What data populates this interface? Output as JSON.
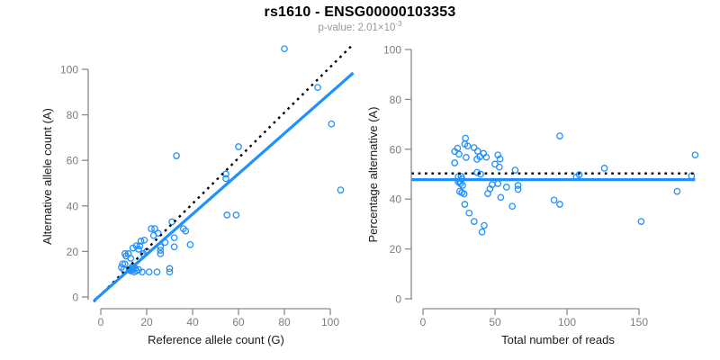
{
  "header": {
    "title": "rs1610 - ENSG00000103353",
    "subtitle_prefix": "p-value: ",
    "subtitle_mantissa": "2.01",
    "subtitle_base": "×10",
    "subtitle_exponent": "-3"
  },
  "colors": {
    "point_blue": "#1E90FF",
    "fit_blue": "#1E90FF",
    "dotted_black": "#000000",
    "axis_gray": "#8a8a8a",
    "tick_label_gray": "#7d7d7d",
    "label_dark": "#1a1a1a",
    "subtitle_gray": "#979797"
  },
  "chart_data": [
    {
      "type": "scatter",
      "panel": "left",
      "xlabel": "Reference allele count (G)",
      "ylabel": "Alternative allele count (A)",
      "xtick_labels": [
        "0",
        "20",
        "40",
        "60",
        "80",
        "100"
      ],
      "xtick_values": [
        0,
        20,
        40,
        60,
        80,
        100
      ],
      "ytick_labels": [
        "0",
        "20",
        "40",
        "60",
        "80",
        "100"
      ],
      "ytick_values": [
        0,
        20,
        40,
        60,
        80,
        100
      ],
      "xlim": [
        -4,
        112
      ],
      "ylim": [
        -4,
        112
      ],
      "grid": false,
      "legend": "none",
      "points": [
        [
          22,
          30
        ],
        [
          23.5,
          30
        ],
        [
          36,
          30
        ],
        [
          37,
          29
        ],
        [
          32,
          26
        ],
        [
          32,
          22
        ],
        [
          39,
          23
        ],
        [
          17.5,
          24.5
        ],
        [
          15.5,
          22.5
        ],
        [
          17,
          22.5
        ],
        [
          16.5,
          21
        ],
        [
          14,
          21.5
        ],
        [
          10.5,
          19
        ],
        [
          12,
          19
        ],
        [
          11,
          18
        ],
        [
          26,
          22
        ],
        [
          26,
          20.5
        ],
        [
          26,
          19
        ],
        [
          9.5,
          14.5
        ],
        [
          10.5,
          14.5
        ],
        [
          9,
          13
        ],
        [
          10,
          12
        ],
        [
          14,
          13
        ],
        [
          15,
          12.5
        ],
        [
          15.5,
          11.5
        ],
        [
          14.5,
          11
        ],
        [
          13.5,
          12
        ],
        [
          16.5,
          12
        ],
        [
          18,
          11
        ],
        [
          21,
          11
        ],
        [
          24.5,
          11
        ],
        [
          30,
          12.5
        ],
        [
          30,
          11
        ],
        [
          33,
          62
        ],
        [
          60,
          66
        ],
        [
          54.5,
          54
        ],
        [
          54.5,
          52
        ],
        [
          55,
          36
        ],
        [
          59,
          36
        ],
        [
          80,
          109
        ],
        [
          94.5,
          92
        ],
        [
          100.5,
          76
        ],
        [
          104.5,
          47
        ],
        [
          13,
          17
        ],
        [
          19,
          25
        ],
        [
          28,
          24
        ],
        [
          31,
          33
        ],
        [
          13.5,
          13
        ],
        [
          12.5,
          12
        ],
        [
          13,
          11.5
        ],
        [
          14,
          12
        ],
        [
          23,
          27
        ],
        [
          25,
          28
        ],
        [
          18.5,
          19
        ],
        [
          20,
          20
        ]
      ],
      "lines": [
        {
          "name": "identity-line",
          "desc": "dotted identity y=x",
          "style": "dotted",
          "color": "#000000",
          "from": [
            -3,
            -2
          ],
          "to": [
            109.5,
            110.5
          ]
        },
        {
          "name": "fit-line",
          "desc": "solid fit y≈0.89x",
          "style": "solid",
          "color": "#1E90FF",
          "from": [
            -3,
            -1.7
          ],
          "to": [
            110,
            98.4
          ]
        }
      ]
    },
    {
      "type": "scatter",
      "panel": "right",
      "xlabel": "Total number of reads",
      "ylabel": "Percentage alternative (A)",
      "xtick_labels": [
        "0",
        "50",
        "100",
        "150"
      ],
      "xtick_values": [
        0,
        50,
        100,
        150
      ],
      "ytick_labels": [
        "0",
        "20",
        "40",
        "60",
        "80",
        "100"
      ],
      "ytick_values": [
        0,
        20,
        40,
        60,
        80,
        100
      ],
      "xlim": [
        -8,
        200
      ],
      "ylim": [
        -4,
        112
      ],
      "grid": false,
      "legend": "none",
      "points": [
        [
          52,
          57.7
        ],
        [
          53.5,
          56.1
        ],
        [
          66,
          45.5
        ],
        [
          66,
          43.9
        ],
        [
          58,
          44.8
        ],
        [
          54,
          40.7
        ],
        [
          62,
          37.1
        ],
        [
          42,
          58.3
        ],
        [
          38,
          59.2
        ],
        [
          39.5,
          57
        ],
        [
          37.5,
          56
        ],
        [
          35.5,
          60.6
        ],
        [
          29.5,
          64.4
        ],
        [
          31,
          61.3
        ],
        [
          29,
          62.1
        ],
        [
          48,
          45.8
        ],
        [
          46.5,
          44.1
        ],
        [
          45,
          42.2
        ],
        [
          24,
          60.4
        ],
        [
          25,
          58
        ],
        [
          22,
          59.1
        ],
        [
          22,
          54.5
        ],
        [
          27,
          48.1
        ],
        [
          27.5,
          45.5
        ],
        [
          27,
          42.6
        ],
        [
          25.5,
          43.1
        ],
        [
          25.5,
          47.1
        ],
        [
          28.5,
          42.1
        ],
        [
          29,
          37.9
        ],
        [
          32,
          34.4
        ],
        [
          35.5,
          31
        ],
        [
          42.5,
          29.4
        ],
        [
          41,
          26.8
        ],
        [
          95,
          65.3
        ],
        [
          126,
          52.4
        ],
        [
          108.5,
          49.8
        ],
        [
          106.5,
          48.8
        ],
        [
          91,
          39.6
        ],
        [
          95,
          37.9
        ],
        [
          189,
          57.7
        ],
        [
          186.5,
          49.3
        ],
        [
          176.5,
          43.1
        ],
        [
          151.5,
          31
        ],
        [
          30,
          56.7
        ],
        [
          44,
          56.8
        ],
        [
          52,
          46.2
        ],
        [
          64,
          51.6
        ],
        [
          26.5,
          49.1
        ],
        [
          24.5,
          49
        ],
        [
          24.5,
          46.9
        ],
        [
          26,
          46.2
        ],
        [
          50,
          54
        ],
        [
          53,
          52.8
        ],
        [
          37.5,
          50.7
        ],
        [
          40,
          50
        ]
      ],
      "lines": [
        {
          "name": "expected-line",
          "desc": "dotted expected 50%",
          "style": "dotted",
          "color": "#000000",
          "from": [
            -8,
            50.3
          ],
          "to": [
            189,
            50.3
          ]
        },
        {
          "name": "fit-line",
          "desc": "solid mean percentage",
          "style": "solid",
          "color": "#1E90FF",
          "from": [
            -8,
            47.8
          ],
          "to": [
            189,
            47.8
          ]
        }
      ]
    }
  ]
}
